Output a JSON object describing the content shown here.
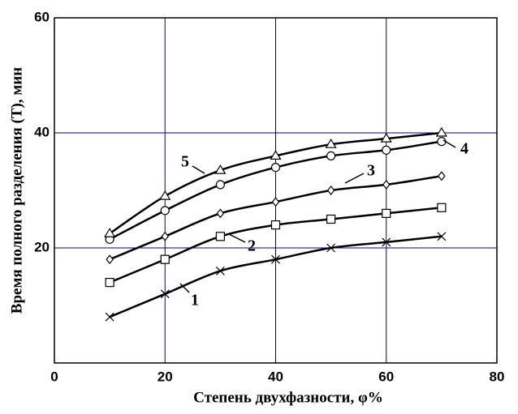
{
  "chart_data": {
    "type": "line",
    "x_label": "Степень двухфазности, φ%",
    "y_label": "Время полного разделения (T), мин",
    "x": [
      10,
      20,
      30,
      40,
      50,
      60,
      70
    ],
    "series": [
      {
        "name": "1",
        "color": "#000000",
        "marker": "cross",
        "values": [
          8,
          12,
          16,
          18,
          20,
          21,
          22
        ]
      },
      {
        "name": "2",
        "color": "#000000",
        "marker": "square",
        "values": [
          14,
          18,
          22,
          24,
          25,
          26,
          27
        ]
      },
      {
        "name": "3",
        "color": "#000000",
        "marker": "diamond",
        "values": [
          18,
          22,
          26,
          28,
          30,
          31,
          32.5
        ]
      },
      {
        "name": "4",
        "color": "#000000",
        "marker": "circle",
        "values": [
          21.5,
          26.5,
          31,
          34,
          36,
          37,
          38.5
        ]
      },
      {
        "name": "5",
        "color": "#000000",
        "marker": "triangle",
        "values": [
          22.5,
          29,
          33.5,
          36,
          38,
          39,
          40
        ]
      }
    ],
    "xlim": [
      0,
      80
    ],
    "xticks": [
      0,
      20,
      40,
      60,
      80
    ],
    "ylim": [
      0,
      60
    ],
    "yticks": [
      20,
      40,
      60
    ],
    "grid": true,
    "grid_color": "#00008b"
  }
}
